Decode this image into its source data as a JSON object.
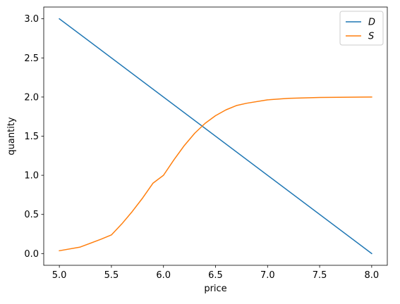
{
  "chart_data": {
    "type": "line",
    "title": "",
    "xlabel": "price",
    "ylabel": "quantity",
    "xlim": [
      4.85,
      8.15
    ],
    "ylim": [
      -0.15,
      3.15
    ],
    "xticks": [
      5.0,
      5.5,
      6.0,
      6.5,
      7.0,
      7.5,
      8.0
    ],
    "xtick_labels": [
      "5.0",
      "5.5",
      "6.0",
      "6.5",
      "7.0",
      "7.5",
      "8.0"
    ],
    "yticks": [
      0.0,
      0.5,
      1.0,
      1.5,
      2.0,
      2.5,
      3.0
    ],
    "ytick_labels": [
      "0.0",
      "0.5",
      "1.0",
      "1.5",
      "2.0",
      "2.5",
      "3.0"
    ],
    "grid": false,
    "legend_position": "top-right",
    "series": [
      {
        "name": "D",
        "color": "#1f77b4",
        "x": [
          5.0,
          8.0
        ],
        "y": [
          3.0,
          0.0
        ]
      },
      {
        "name": "S",
        "color": "#ff7f0e",
        "x": [
          5.0,
          5.2,
          5.4,
          5.5,
          5.6,
          5.7,
          5.8,
          5.9,
          6.0,
          6.1,
          6.2,
          6.3,
          6.4,
          6.5,
          6.6,
          6.7,
          6.8,
          7.0,
          7.2,
          7.5,
          8.0
        ],
        "y": [
          0.036,
          0.083,
          0.183,
          0.238,
          0.379,
          0.537,
          0.71,
          0.9,
          1.0,
          1.197,
          1.38,
          1.537,
          1.664,
          1.762,
          1.836,
          1.891,
          1.921,
          1.964,
          1.983,
          1.995,
          2.0
        ]
      }
    ]
  }
}
